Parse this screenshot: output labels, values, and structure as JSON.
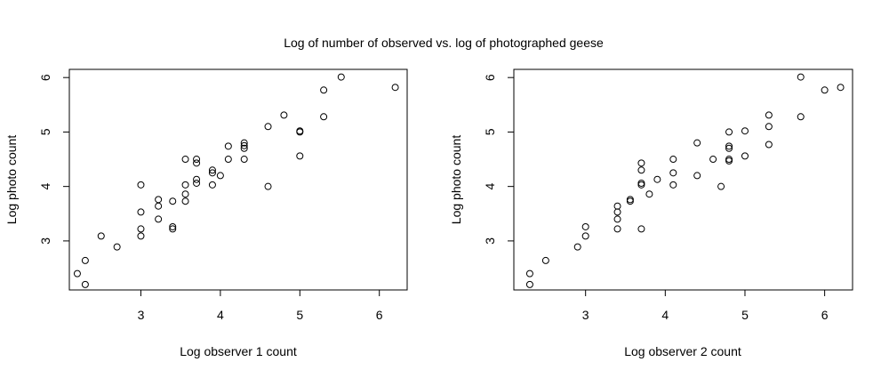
{
  "figure": {
    "title": "Log of number of observed vs. log of photographed geese"
  },
  "chart_data": [
    {
      "type": "scatter",
      "xlabel": "Log observer 1 count",
      "ylabel": "Log photo count",
      "xlim": [
        2.1,
        6.35
      ],
      "ylim": [
        2.1,
        6.15
      ],
      "xticks": [
        3,
        4,
        5,
        6
      ],
      "yticks": [
        3,
        4,
        5,
        6
      ],
      "grid": false,
      "legend": "none",
      "marker": "open-circle",
      "points": [
        [
          2.2,
          2.4
        ],
        [
          2.3,
          2.2
        ],
        [
          2.3,
          2.64
        ],
        [
          2.5,
          3.09
        ],
        [
          2.7,
          2.89
        ],
        [
          3.0,
          4.03
        ],
        [
          3.0,
          3.53
        ],
        [
          3.0,
          3.22
        ],
        [
          3.0,
          3.09
        ],
        [
          3.22,
          3.76
        ],
        [
          3.22,
          3.64
        ],
        [
          3.22,
          3.4
        ],
        [
          3.4,
          3.73
        ],
        [
          3.4,
          3.26
        ],
        [
          3.4,
          3.22
        ],
        [
          3.56,
          4.5
        ],
        [
          3.56,
          4.03
        ],
        [
          3.56,
          3.86
        ],
        [
          3.56,
          3.73
        ],
        [
          3.7,
          4.5
        ],
        [
          3.7,
          4.43
        ],
        [
          3.7,
          4.13
        ],
        [
          3.7,
          4.06
        ],
        [
          3.9,
          4.3
        ],
        [
          3.9,
          4.25
        ],
        [
          3.9,
          4.03
        ],
        [
          4.0,
          4.2
        ],
        [
          4.1,
          4.74
        ],
        [
          4.1,
          4.5
        ],
        [
          4.3,
          4.8
        ],
        [
          4.3,
          4.75
        ],
        [
          4.3,
          4.7
        ],
        [
          4.3,
          4.5
        ],
        [
          4.6,
          5.1
        ],
        [
          4.6,
          4.0
        ],
        [
          4.8,
          5.31
        ],
        [
          5.0,
          5.02
        ],
        [
          5.0,
          5.0
        ],
        [
          5.0,
          4.56
        ],
        [
          5.3,
          5.77
        ],
        [
          5.3,
          5.28
        ],
        [
          5.52,
          6.01
        ],
        [
          6.2,
          5.82
        ]
      ]
    },
    {
      "type": "scatter",
      "xlabel": "Log observer 2 count",
      "ylabel": "Log photo count",
      "xlim": [
        2.1,
        6.35
      ],
      "ylim": [
        2.1,
        6.15
      ],
      "xticks": [
        3,
        4,
        5,
        6
      ],
      "yticks": [
        3,
        4,
        5,
        6
      ],
      "grid": false,
      "legend": "none",
      "marker": "open-circle",
      "points": [
        [
          2.3,
          2.4
        ],
        [
          2.3,
          2.2
        ],
        [
          2.5,
          2.64
        ],
        [
          2.9,
          2.89
        ],
        [
          3.0,
          3.26
        ],
        [
          3.0,
          3.09
        ],
        [
          3.4,
          3.64
        ],
        [
          3.4,
          3.53
        ],
        [
          3.4,
          3.4
        ],
        [
          3.4,
          3.22
        ],
        [
          3.56,
          3.76
        ],
        [
          3.56,
          3.73
        ],
        [
          3.7,
          4.43
        ],
        [
          3.7,
          4.3
        ],
        [
          3.7,
          4.06
        ],
        [
          3.7,
          4.03
        ],
        [
          3.7,
          3.22
        ],
        [
          3.8,
          3.86
        ],
        [
          3.9,
          4.13
        ],
        [
          4.1,
          4.5
        ],
        [
          4.1,
          4.25
        ],
        [
          4.1,
          4.03
        ],
        [
          4.4,
          4.8
        ],
        [
          4.4,
          4.2
        ],
        [
          4.6,
          4.5
        ],
        [
          4.7,
          4.0
        ],
        [
          4.8,
          5.0
        ],
        [
          4.8,
          4.74
        ],
        [
          4.8,
          4.7
        ],
        [
          4.8,
          4.5
        ],
        [
          4.8,
          4.47
        ],
        [
          5.0,
          5.02
        ],
        [
          5.0,
          4.56
        ],
        [
          5.3,
          5.31
        ],
        [
          5.3,
          5.1
        ],
        [
          5.3,
          4.77
        ],
        [
          5.7,
          6.01
        ],
        [
          5.7,
          5.28
        ],
        [
          6.0,
          5.77
        ],
        [
          6.2,
          5.82
        ]
      ]
    }
  ]
}
